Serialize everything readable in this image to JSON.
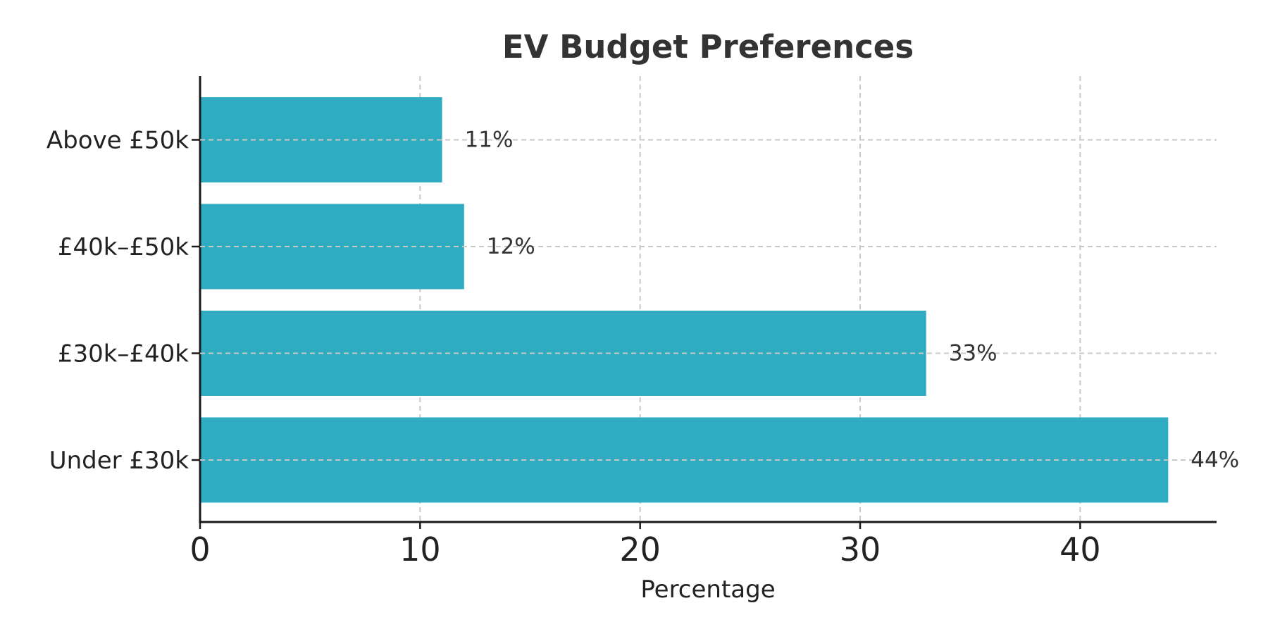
{
  "chart_data": {
    "type": "bar",
    "orientation": "horizontal",
    "title": "EV Budget Preferences",
    "xlabel": "Percentage",
    "ylabel": "",
    "categories": [
      "Under £30k",
      "£30k–£40k",
      "£40k–£50k",
      "Above £50k"
    ],
    "values": [
      44,
      33,
      12,
      11
    ],
    "data_labels": [
      "44%",
      "33%",
      "12%",
      "11%"
    ],
    "xlim": [
      0,
      46.2
    ],
    "xticks": [
      0,
      10,
      20,
      30,
      40
    ],
    "xtick_labels": [
      "0",
      "10",
      "20",
      "30",
      "40"
    ],
    "grid": true,
    "grid_style": "dashed",
    "legend": "none",
    "colors": {
      "bar": "#2fabc2",
      "grid": "#c8c8c8",
      "axis": "#1a1a1a",
      "text": "#333333"
    }
  }
}
